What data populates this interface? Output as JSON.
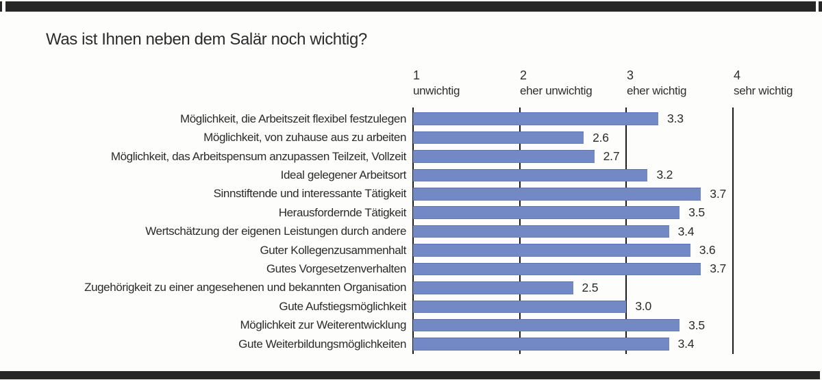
{
  "title": "Was ist Ihnen neben dem Salär noch wichtig?",
  "chart_data": {
    "type": "bar",
    "orientation": "horizontal",
    "title": "Was ist Ihnen neben dem Salär noch wichtig?",
    "xlim": [
      1,
      4
    ],
    "grid": true,
    "bar_color": "#7389c5",
    "axis_color": "#1b1b1b",
    "x_ticks": [
      {
        "value": "1",
        "label": "unwichtig"
      },
      {
        "value": "2",
        "label": "eher unwichtig"
      },
      {
        "value": "3",
        "label": "eher wichtig"
      },
      {
        "value": "4",
        "label": "sehr wichtig"
      }
    ],
    "categories": [
      "Möglichkeit, die Arbeitszeit flexibel festzulegen",
      "Möglichkeit, von zuhause aus zu arbeiten",
      "Möglichkeit, das Arbeitspensum anzupassen Teilzeit, Vollzeit",
      "Ideal gelegener Arbeitsort",
      "Sinnstiftende und interessante Tätigkeit",
      "Herausfordernde Tätigkeit",
      "Wertschätzung der eigenen Leistungen durch andere",
      "Guter Kollegenzusammenhalt",
      "Gutes Vorgesetzenverhalten",
      "Zugehörigkeit zu einer angesehenen und bekannten Organisation",
      "Gute Aufstiegsmöglichkeit",
      "Möglichkeit zur Weiterentwicklung",
      "Gute Weiterbildungsmöglichkeiten"
    ],
    "values": [
      3.3,
      2.6,
      2.7,
      3.2,
      3.7,
      3.5,
      3.4,
      3.6,
      3.7,
      2.5,
      3.0,
      3.5,
      3.4
    ],
    "value_labels": [
      "3.3",
      "2.6",
      "2.7",
      "3.2",
      "3.7",
      "3.5",
      "3.4",
      "3.6",
      "3.7",
      "2.5",
      "3.0",
      "3.5",
      "3.4"
    ]
  }
}
